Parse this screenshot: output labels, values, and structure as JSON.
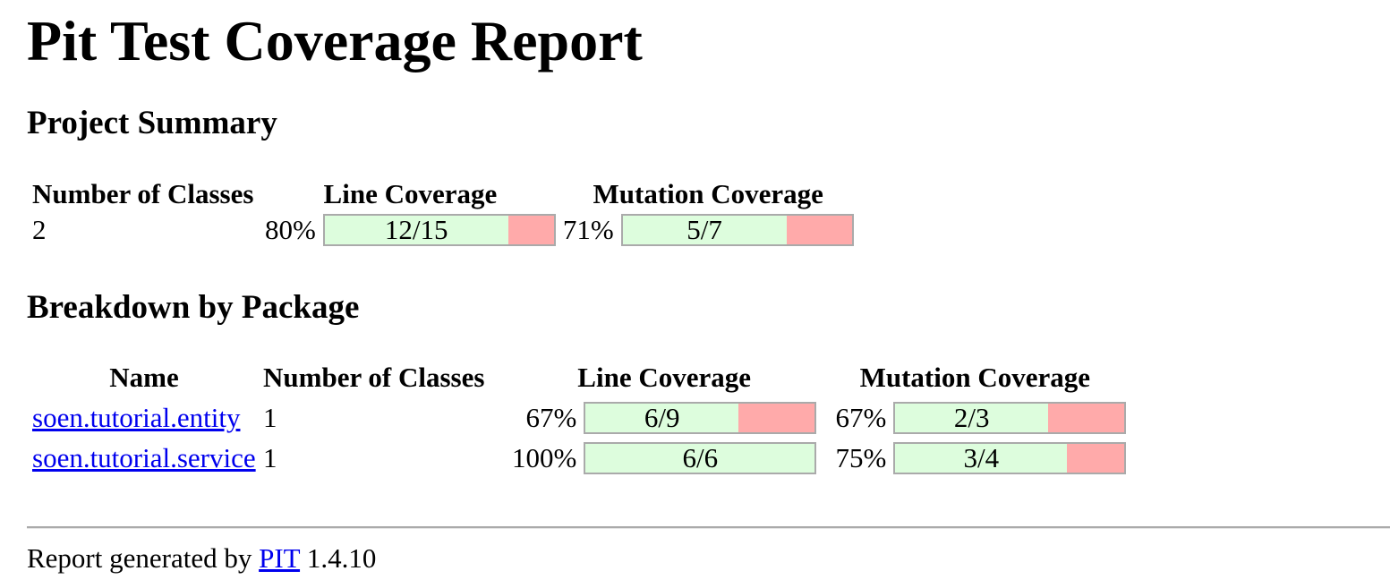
{
  "title": "Pit Test Coverage Report",
  "project_summary": {
    "heading": "Project Summary",
    "headers": {
      "classes": "Number of Classes",
      "line_coverage": "Line Coverage",
      "mutation_coverage": "Mutation Coverage"
    },
    "number_of_classes": "2",
    "line_coverage": {
      "percent": "80%",
      "legend": "12/15",
      "covered": 12,
      "total": 15
    },
    "mutation_coverage": {
      "percent": "71%",
      "legend": "5/7",
      "covered": 5,
      "total": 7
    }
  },
  "breakdown": {
    "heading": "Breakdown by Package",
    "headers": {
      "name": "Name",
      "classes": "Number of Classes",
      "line_coverage": "Line Coverage",
      "mutation_coverage": "Mutation Coverage"
    },
    "packages": [
      {
        "name": "soen.tutorial.entity",
        "number_of_classes": "1",
        "line_coverage": {
          "percent": "67%",
          "legend": "6/9",
          "covered": 6,
          "total": 9
        },
        "mutation_coverage": {
          "percent": "67%",
          "legend": "2/3",
          "covered": 2,
          "total": 3
        }
      },
      {
        "name": "soen.tutorial.service",
        "number_of_classes": "1",
        "line_coverage": {
          "percent": "100%",
          "legend": "6/6",
          "covered": 6,
          "total": 6
        },
        "mutation_coverage": {
          "percent": "75%",
          "legend": "3/4",
          "covered": 3,
          "total": 4
        }
      }
    ]
  },
  "footer": {
    "prefix": "Report generated by",
    "link_text": "PIT",
    "version": "1.4.10"
  },
  "colors": {
    "covered": "#ddfddd",
    "uncovered": "#ffaaaa",
    "bar_border": "#aaaaaa",
    "link": "#0000ee"
  }
}
